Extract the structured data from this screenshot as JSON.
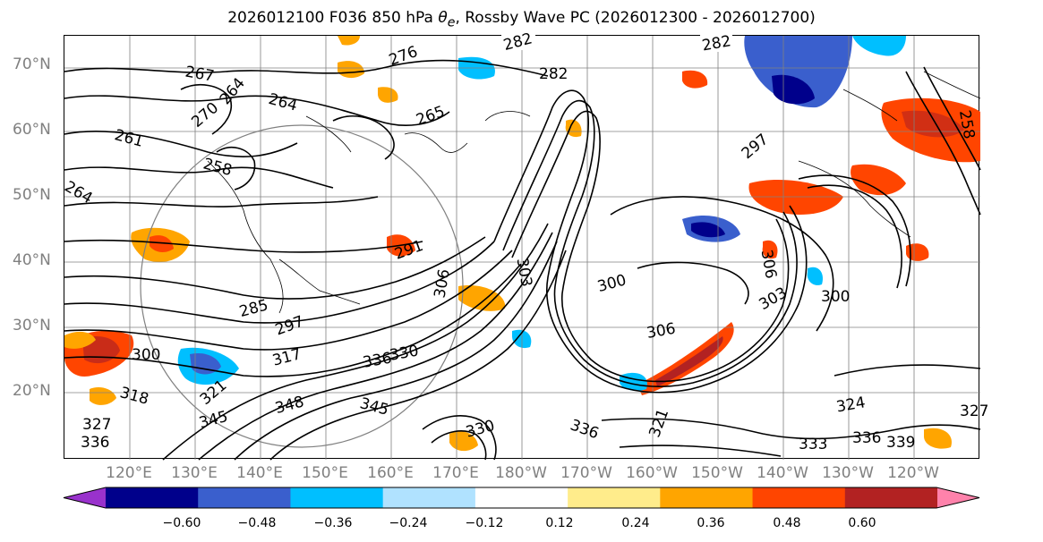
{
  "title": {
    "prefix": "2026012100 F036 850 hPa ",
    "theta_symbol": "θ",
    "theta_sub": "e",
    "suffix": ", Rossby Wave PC (2026012300 - 2026012700)"
  },
  "lat_labels": [
    "70°N",
    "60°N",
    "50°N",
    "40°N",
    "30°N",
    "20°N"
  ],
  "lon_labels": [
    "120°E",
    "130°E",
    "140°E",
    "150°E",
    "160°E",
    "170°E",
    "180°W",
    "170°W",
    "160°W",
    "150°W",
    "140°W",
    "130°W",
    "120°W"
  ],
  "colorbar": {
    "tick_labels": [
      "−0.60",
      "−0.48",
      "−0.36",
      "−0.24",
      "−0.12",
      "0.12",
      "0.24",
      "0.36",
      "0.48",
      "0.60"
    ],
    "colors": [
      "#9932cc",
      "#00008b",
      "#3a5fcd",
      "#00bfff",
      "#b0e2ff",
      "#ffffff",
      "#ffec8b",
      "#ffa500",
      "#ff4500",
      "#b22222",
      "#ff82ab"
    ]
  },
  "contour_labels": [
    "282",
    "282",
    "267",
    "276",
    "264",
    "264",
    "282",
    "270",
    "265",
    "261",
    "258",
    "297",
    "264",
    "291",
    "306",
    "303",
    "300",
    "306",
    "306",
    "300",
    "303",
    "285",
    "297",
    "300",
    "317",
    "336",
    "330",
    "318",
    "321",
    "348",
    "345",
    "327",
    "345",
    "336",
    "330",
    "333",
    "336",
    "339",
    "324",
    "321",
    "327",
    "336",
    "258"
  ],
  "map": {
    "land_color": "#ffffff",
    "contour_color": "#000000",
    "grid_color": "#808080"
  }
}
